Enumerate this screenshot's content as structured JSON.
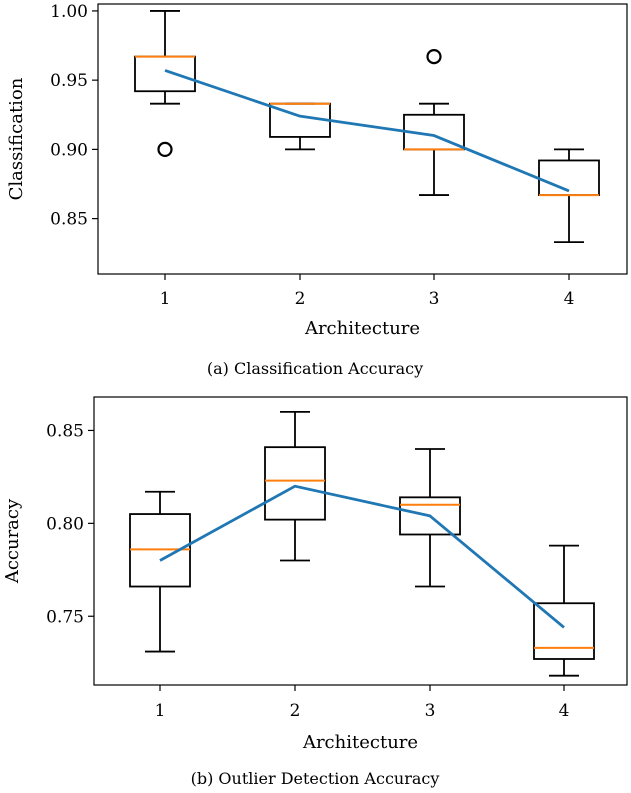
{
  "chart_data": [
    {
      "type": "box",
      "caption": "(a) Classification Accuracy",
      "xlabel": "Architecture",
      "ylabel": "Classification",
      "categories": [
        "1",
        "2",
        "3",
        "4"
      ],
      "yticks": [
        "0.85",
        "0.90",
        "0.95",
        "1.00"
      ],
      "ylim": [
        0.81,
        1.005
      ],
      "boxes": [
        {
          "min": 0.933,
          "q1": 0.942,
          "median": 0.967,
          "q3": 0.967,
          "max": 1.0,
          "outliers": [
            0.9
          ]
        },
        {
          "min": 0.9,
          "q1": 0.909,
          "median": 0.933,
          "q3": 0.933,
          "max": 0.933,
          "outliers": []
        },
        {
          "min": 0.867,
          "q1": 0.9,
          "median": 0.9,
          "q3": 0.925,
          "max": 0.933,
          "outliers": [
            0.967
          ]
        },
        {
          "min": 0.833,
          "q1": 0.867,
          "median": 0.867,
          "q3": 0.892,
          "max": 0.9,
          "outliers": []
        }
      ],
      "mean_line": [
        0.957,
        0.924,
        0.91,
        0.87
      ],
      "colors": {
        "median": "#ff7f0e",
        "line": "#1f77b4",
        "box": "#000000"
      }
    },
    {
      "type": "box",
      "caption": "(b) Outlier Detection Accuracy",
      "xlabel": "Architecture",
      "ylabel": "Accuracy",
      "categories": [
        "1",
        "2",
        "3",
        "4"
      ],
      "yticks": [
        "0.75",
        "0.80",
        "0.85"
      ],
      "ylim": [
        0.713,
        0.868
      ],
      "boxes": [
        {
          "min": 0.731,
          "q1": 0.766,
          "median": 0.786,
          "q3": 0.805,
          "max": 0.817,
          "outliers": []
        },
        {
          "min": 0.78,
          "q1": 0.802,
          "median": 0.823,
          "q3": 0.841,
          "max": 0.86,
          "outliers": []
        },
        {
          "min": 0.766,
          "q1": 0.794,
          "median": 0.81,
          "q3": 0.814,
          "max": 0.84,
          "outliers": []
        },
        {
          "min": 0.718,
          "q1": 0.727,
          "median": 0.733,
          "q3": 0.757,
          "max": 0.788,
          "outliers": []
        }
      ],
      "mean_line": [
        0.78,
        0.82,
        0.804,
        0.744
      ],
      "colors": {
        "median": "#ff7f0e",
        "line": "#1f77b4",
        "box": "#000000"
      }
    }
  ]
}
